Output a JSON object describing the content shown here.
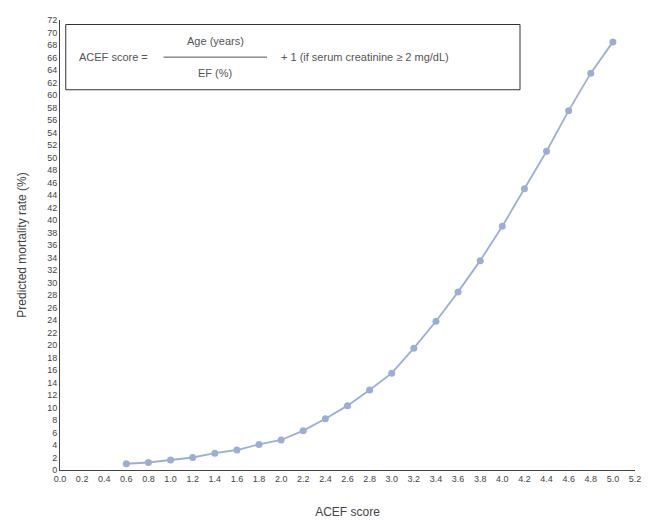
{
  "chart_data": {
    "type": "line",
    "x": [
      0.6,
      0.8,
      1.0,
      1.2,
      1.4,
      1.6,
      1.8,
      2.0,
      2.2,
      2.4,
      2.6,
      2.8,
      3.0,
      3.2,
      3.4,
      3.6,
      3.8,
      4.0,
      4.2,
      4.4,
      4.6,
      4.8,
      5.0
    ],
    "values": [
      1.0,
      1.2,
      1.6,
      2.0,
      2.7,
      3.2,
      4.1,
      4.8,
      6.3,
      8.2,
      10.3,
      12.8,
      15.5,
      19.5,
      23.8,
      28.5,
      33.5,
      39.0,
      45.0,
      51.0,
      57.5,
      63.5,
      68.5
    ],
    "color": "#9daed4",
    "marker": "circle",
    "xlabel": "ACEF score",
    "ylabel": "Predicted mortality rate (%)",
    "xlim": [
      0.0,
      5.2
    ],
    "ylim": [
      0,
      72
    ],
    "xticks": [
      {
        "value": 0,
        "label": "0.0"
      },
      0.2,
      0.4,
      0.6,
      0.8,
      {
        "value": 1,
        "label": "1.0"
      },
      1.2,
      1.4,
      1.6,
      1.8,
      {
        "value": 2,
        "label": "2.0"
      },
      2.2,
      2.4,
      2.6,
      2.8,
      {
        "value": 3,
        "label": "3.0"
      },
      3.2,
      3.4,
      3.6,
      3.8,
      {
        "value": 4,
        "label": "4.0"
      },
      4.2,
      4.4,
      4.6,
      4.8,
      {
        "value": 5,
        "label": "5.0"
      },
      5.2
    ],
    "yticks": [
      0,
      2,
      4,
      6,
      8,
      10,
      12,
      14,
      16,
      18,
      20,
      22,
      24,
      26,
      28,
      30,
      32,
      34,
      36,
      38,
      40,
      42,
      44,
      46,
      48,
      50,
      52,
      54,
      56,
      58,
      60,
      62,
      64,
      66,
      68,
      70,
      72
    ],
    "annotations": [
      "ACEF score =",
      "Age (years)",
      "EF (%)",
      "+ 1 (if serum creatinine ≥ 2 mg/dL)"
    ],
    "grid": false
  }
}
